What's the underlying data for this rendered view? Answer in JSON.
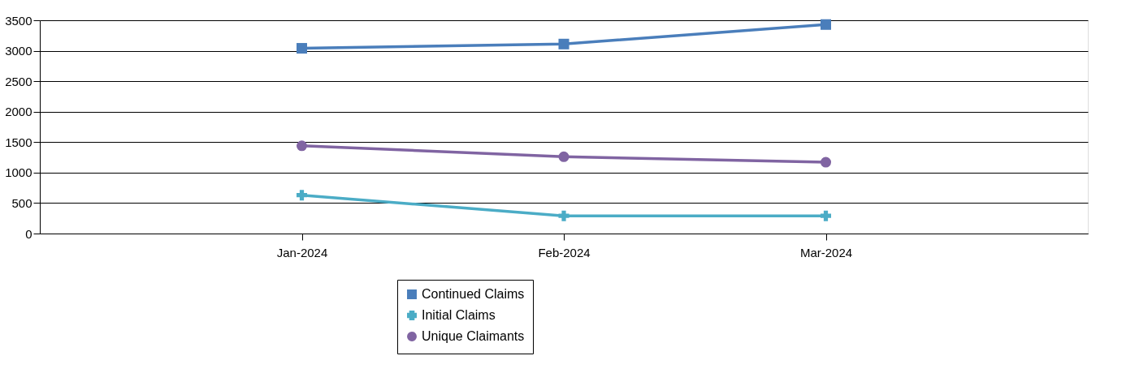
{
  "chart_data": {
    "type": "line",
    "categories": [
      "Jan-2024",
      "Feb-2024",
      "Mar-2024"
    ],
    "series": [
      {
        "name": "Continued Claims",
        "color": "#4a7ebb",
        "marker": "square",
        "values": [
          3040,
          3110,
          3430
        ]
      },
      {
        "name": "Initial Claims",
        "color": "#4bacc6",
        "marker": "cross",
        "values": [
          630,
          290,
          290
        ]
      },
      {
        "name": "Unique Claimants",
        "color": "#8064a2",
        "marker": "circle",
        "values": [
          1440,
          1260,
          1170
        ]
      }
    ],
    "ylim": [
      0,
      3500
    ],
    "yticks": [
      0,
      500,
      1000,
      1500,
      2000,
      2500,
      3000,
      3500
    ],
    "grid": "y",
    "legend": "bottom",
    "line_style": "solid"
  }
}
